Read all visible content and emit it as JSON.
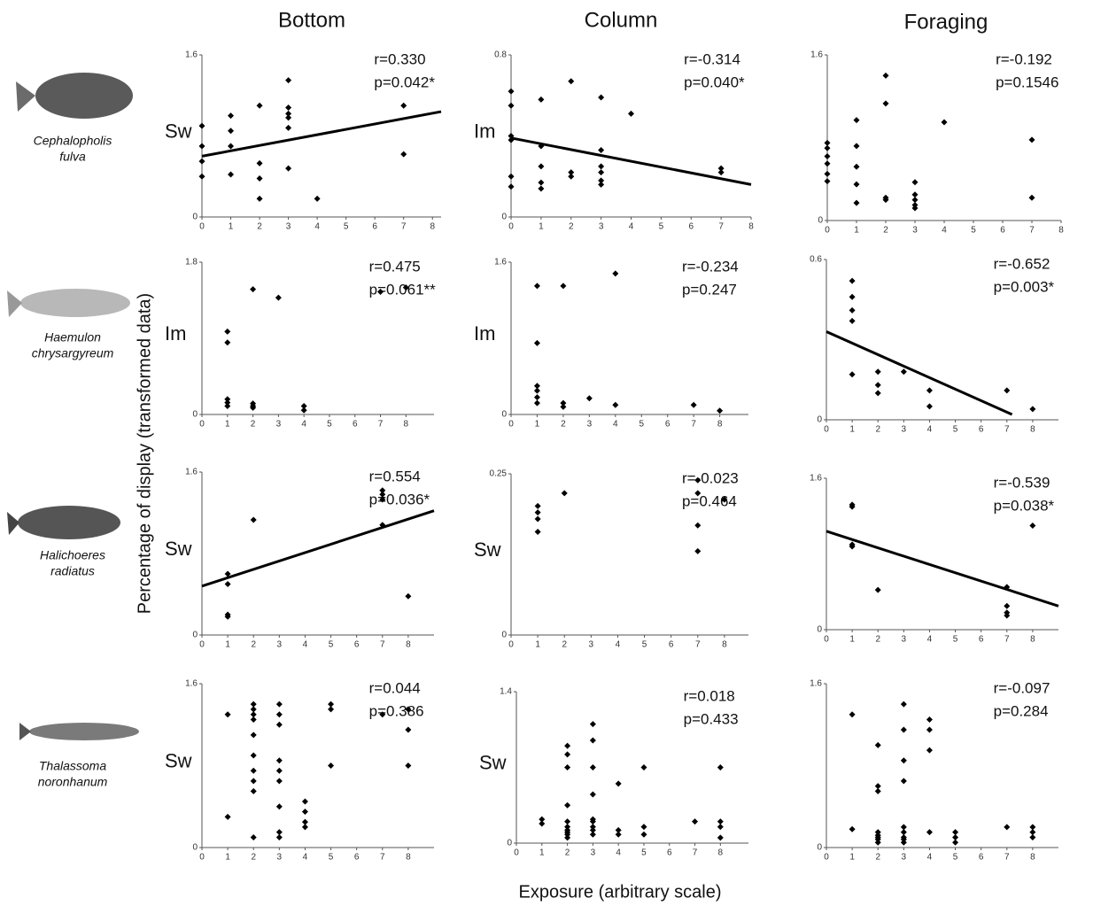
{
  "columns": [
    "Bottom",
    "Column",
    "Foraging"
  ],
  "species": [
    [
      "Cephalopholis",
      "fulva"
    ],
    [
      "Haemulon",
      "chrysargyreum"
    ],
    [
      "Halichoeres",
      "radiatus"
    ],
    [
      "Thalassoma",
      "noronhanum"
    ]
  ],
  "ylabel": "Percentage of display (transformed data)",
  "xlabel": "Exposure (arbitrary scale)",
  "chart_data": [
    {
      "type": "scatter",
      "label": "Sw",
      "annotations": [
        "r=0.330",
        "p=0.042*"
      ],
      "xlim": [
        0,
        8.3
      ],
      "ylim": [
        0,
        1.6
      ],
      "xticks": [
        0,
        1,
        2,
        3,
        4,
        5,
        6,
        7,
        8
      ],
      "yticks": [
        0,
        1.6
      ],
      "x": [
        0,
        0,
        0,
        0,
        1,
        1,
        1,
        1,
        2,
        2,
        2,
        2,
        3,
        3,
        3,
        3,
        3,
        3,
        4,
        7,
        7
      ],
      "values": [
        0.9,
        0.7,
        0.55,
        0.4,
        1.0,
        0.85,
        0.7,
        0.42,
        1.1,
        0.53,
        0.38,
        0.18,
        1.35,
        1.08,
        1.02,
        0.98,
        0.88,
        0.48,
        0.18,
        1.1,
        0.62
      ],
      "fit": {
        "x": [
          0,
          8.3
        ],
        "y": [
          0.6,
          1.04
        ]
      }
    },
    {
      "type": "scatter",
      "label": "Im",
      "annotations": [
        "r=-0.314",
        "p=0.040*"
      ],
      "xlim": [
        0,
        8
      ],
      "ylim": [
        0,
        0.8
      ],
      "xticks": [
        0,
        1,
        2,
        3,
        4,
        5,
        6,
        7,
        8
      ],
      "yticks": [
        0,
        0.8
      ],
      "x": [
        0,
        0,
        0,
        0,
        0,
        0,
        1,
        1,
        1,
        1,
        1,
        2,
        2,
        2,
        3,
        3,
        3,
        3,
        3,
        3,
        4,
        7,
        7
      ],
      "values": [
        0.62,
        0.55,
        0.4,
        0.38,
        0.2,
        0.15,
        0.58,
        0.35,
        0.25,
        0.17,
        0.14,
        0.67,
        0.22,
        0.2,
        0.59,
        0.33,
        0.25,
        0.22,
        0.18,
        0.16,
        0.51,
        0.24,
        0.22
      ],
      "fit": {
        "x": [
          0,
          8
        ],
        "y": [
          0.39,
          0.16
        ]
      }
    },
    {
      "type": "scatter",
      "annotations": [
        "r=-0.192",
        "p=0.1546"
      ],
      "xlim": [
        0,
        8
      ],
      "ylim": [
        0,
        1.6
      ],
      "xticks": [
        0,
        1,
        2,
        3,
        4,
        5,
        6,
        7,
        8
      ],
      "yticks": [
        0,
        1.6
      ],
      "x": [
        0,
        0,
        0,
        0,
        0,
        0,
        1,
        1,
        1,
        1,
        1,
        2,
        2,
        2,
        2,
        3,
        3,
        3,
        3,
        3,
        4,
        7,
        7
      ],
      "values": [
        0.75,
        0.7,
        0.62,
        0.55,
        0.45,
        0.38,
        0.97,
        0.72,
        0.52,
        0.35,
        0.17,
        1.4,
        1.13,
        0.2,
        0.22,
        0.37,
        0.25,
        0.2,
        0.15,
        0.12,
        0.95,
        0.78,
        0.22
      ]
    },
    {
      "type": "scatter",
      "label": "Im",
      "annotations": [
        "r=0.475",
        "p=0.061**"
      ],
      "xlim": [
        0,
        9.1
      ],
      "ylim": [
        0,
        1.8
      ],
      "xticks": [
        0,
        1,
        2,
        3,
        4,
        5,
        6,
        7,
        8
      ],
      "yticks": [
        0,
        1.8
      ],
      "x": [
        1,
        1,
        1,
        1,
        1,
        2,
        2,
        2,
        2,
        3,
        4,
        4,
        7,
        8
      ],
      "values": [
        0.98,
        0.85,
        0.18,
        0.14,
        0.1,
        1.48,
        0.13,
        0.1,
        0.08,
        1.38,
        0.1,
        0.05,
        1.45,
        1.5
      ]
    },
    {
      "type": "scatter",
      "label": "Im",
      "annotations": [
        "r=-0.234",
        "p=0.247"
      ],
      "xlim": [
        0,
        9.1
      ],
      "ylim": [
        0,
        1.6
      ],
      "xticks": [
        0,
        1,
        2,
        3,
        4,
        5,
        6,
        7,
        8
      ],
      "yticks": [
        0,
        1.6
      ],
      "x": [
        1,
        1,
        1,
        1,
        1,
        1,
        2,
        2,
        2,
        3,
        4,
        4,
        7,
        8
      ],
      "values": [
        1.35,
        0.75,
        0.3,
        0.25,
        0.18,
        0.12,
        1.35,
        0.12,
        0.08,
        0.17,
        1.48,
        0.1,
        0.1,
        0.04
      ]
    },
    {
      "type": "scatter",
      "annotations": [
        "r=-0.652",
        "p=0.003*"
      ],
      "xlim": [
        0,
        9
      ],
      "ylim": [
        0,
        0.6
      ],
      "xticks": [
        0,
        1,
        2,
        3,
        4,
        5,
        6,
        7,
        8
      ],
      "yticks": [
        0,
        0.6
      ],
      "x": [
        1,
        1,
        1,
        1,
        1,
        2,
        2,
        2,
        3,
        4,
        4,
        7,
        8
      ],
      "values": [
        0.52,
        0.46,
        0.41,
        0.37,
        0.17,
        0.18,
        0.13,
        0.1,
        0.18,
        0.11,
        0.05,
        0.11,
        0.04
      ],
      "fit": {
        "x": [
          0,
          7.2
        ],
        "y": [
          0.33,
          0.02
        ]
      }
    },
    {
      "type": "scatter",
      "label": "Sw",
      "annotations": [
        "r=0.554",
        "p=0.036*"
      ],
      "xlim": [
        0,
        9
      ],
      "ylim": [
        0,
        1.6
      ],
      "xticks": [
        0,
        1,
        2,
        3,
        4,
        5,
        6,
        7,
        8
      ],
      "yticks": [
        0,
        1.6
      ],
      "x": [
        1,
        1,
        1,
        1,
        2,
        7,
        7,
        7,
        7,
        8
      ],
      "values": [
        0.6,
        0.5,
        0.2,
        0.18,
        1.13,
        1.42,
        1.38,
        1.33,
        1.08,
        0.38
      ],
      "fit": {
        "x": [
          0,
          9
        ],
        "y": [
          0.48,
          1.22
        ]
      }
    },
    {
      "type": "scatter",
      "label": "Sw",
      "annotations": [
        "r=-0.023",
        "p=0.464"
      ],
      "xlim": [
        0,
        8.9
      ],
      "ylim": [
        0,
        0.25
      ],
      "xticks": [
        0,
        1,
        2,
        3,
        4,
        5,
        6,
        7,
        8
      ],
      "yticks": [
        0,
        0.25
      ],
      "x": [
        1,
        1,
        1,
        1,
        2,
        7,
        7,
        7,
        7,
        8
      ],
      "values": [
        0.2,
        0.19,
        0.18,
        0.16,
        0.22,
        0.24,
        0.22,
        0.17,
        0.13,
        0.21
      ]
    },
    {
      "type": "scatter",
      "annotations": [
        "r=-0.539",
        "p=0.038*"
      ],
      "xlim": [
        0,
        9
      ],
      "ylim": [
        0,
        1.6
      ],
      "xticks": [
        0,
        1,
        2,
        3,
        4,
        5,
        6,
        7,
        8
      ],
      "yticks": [
        0,
        1.6
      ],
      "x": [
        1,
        1,
        1,
        1,
        2,
        7,
        7,
        7,
        7,
        8
      ],
      "values": [
        1.32,
        1.3,
        0.9,
        0.88,
        0.42,
        0.45,
        0.25,
        0.18,
        0.15,
        1.1
      ],
      "fit": {
        "x": [
          0,
          9
        ],
        "y": [
          1.04,
          0.25
        ]
      }
    },
    {
      "type": "scatter",
      "label": "Sw",
      "annotations": [
        "r=0.044",
        "p=0.386"
      ],
      "xlim": [
        0,
        9
      ],
      "ylim": [
        0,
        1.6
      ],
      "xticks": [
        0,
        1,
        2,
        3,
        4,
        5,
        6,
        7,
        8
      ],
      "yticks": [
        0,
        1.6
      ],
      "x": [
        1,
        1,
        2,
        2,
        2,
        2,
        2,
        2,
        2,
        2,
        2,
        2,
        3,
        3,
        3,
        3,
        3,
        3,
        3,
        3,
        3,
        4,
        4,
        4,
        4,
        5,
        5,
        5,
        7,
        8,
        8,
        8
      ],
      "values": [
        1.3,
        0.3,
        1.4,
        1.35,
        1.3,
        1.25,
        1.1,
        0.9,
        0.75,
        0.65,
        0.55,
        0.1,
        1.4,
        1.3,
        1.2,
        0.85,
        0.75,
        0.65,
        0.4,
        0.15,
        0.1,
        0.45,
        0.35,
        0.25,
        0.2,
        1.4,
        1.35,
        0.8,
        1.3,
        1.35,
        1.15,
        0.8
      ]
    },
    {
      "type": "scatter",
      "label": "Sw",
      "annotations": [
        "r=0.018",
        "p=0.433"
      ],
      "xlim": [
        0,
        9.1
      ],
      "ylim": [
        0,
        1.4
      ],
      "xticks": [
        0,
        1,
        2,
        3,
        4,
        5,
        6,
        7,
        8
      ],
      "yticks": [
        0,
        1.4
      ],
      "x": [
        1,
        1,
        2,
        2,
        2,
        2,
        2,
        2,
        2,
        2,
        2,
        2,
        3,
        3,
        3,
        3,
        3,
        3,
        3,
        3,
        3,
        4,
        4,
        4,
        5,
        5,
        5,
        7,
        8,
        8,
        8,
        8
      ],
      "values": [
        0.22,
        0.18,
        0.9,
        0.82,
        0.7,
        0.35,
        0.2,
        0.15,
        0.12,
        0.1,
        0.08,
        0.05,
        1.1,
        0.95,
        0.7,
        0.45,
        0.22,
        0.2,
        0.15,
        0.12,
        0.08,
        0.55,
        0.12,
        0.08,
        0.7,
        0.15,
        0.08,
        0.2,
        0.7,
        0.2,
        0.15,
        0.05
      ]
    },
    {
      "type": "scatter",
      "annotations": [
        "r=-0.097",
        "p=0.284"
      ],
      "xlim": [
        0,
        9
      ],
      "ylim": [
        0,
        1.6
      ],
      "xticks": [
        0,
        1,
        2,
        3,
        4,
        5,
        6,
        7,
        8
      ],
      "yticks": [
        0,
        1.6
      ],
      "x": [
        1,
        1,
        2,
        2,
        2,
        2,
        2,
        2,
        2,
        2,
        3,
        3,
        3,
        3,
        3,
        3,
        3,
        3,
        3,
        4,
        4,
        4,
        4,
        5,
        5,
        5,
        7,
        8,
        8,
        8
      ],
      "values": [
        1.3,
        0.18,
        1.0,
        0.6,
        0.55,
        0.15,
        0.12,
        0.1,
        0.08,
        0.05,
        1.4,
        1.15,
        0.85,
        0.65,
        0.2,
        0.15,
        0.1,
        0.08,
        0.05,
        1.25,
        1.15,
        0.95,
        0.15,
        0.15,
        0.1,
        0.05,
        0.2,
        0.2,
        0.15,
        0.1
      ]
    }
  ]
}
